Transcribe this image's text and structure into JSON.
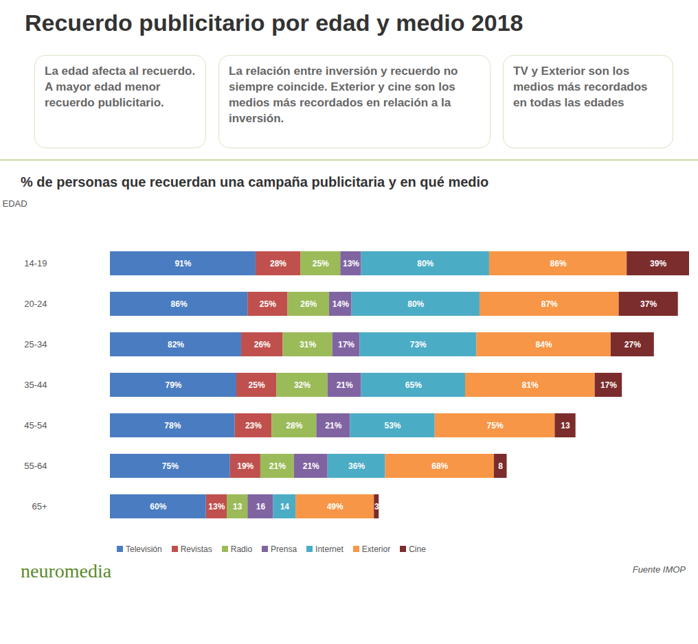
{
  "chart_data": {
    "type": "bar",
    "title": "Recuerdo publicitario por edad y medio 2018",
    "annotations": [
      "La edad afecta al recuerdo. A mayor edad menor recuerdo publicitario.",
      "La relación entre inversión y recuerdo no siempre coincide. Exterior y cine son los medios más recordados en relación a la inversión.",
      "TV y Exterior son los medios más recordados en todas las edades"
    ],
    "subtitle": "% de personas que recuerdan una campaña publicitaria y en qué medio",
    "y_label": "EDAD",
    "categories": [
      "14-19",
      "20-24",
      "25-34",
      "35-44",
      "45-54",
      "55-64",
      "65+"
    ],
    "orientation": "horizontal",
    "stacked": true,
    "data_labels": true,
    "grid": false,
    "tick_labels": "y",
    "legend": "bottom",
    "xlim": [
      0,
      362
    ],
    "series": [
      {
        "name": "Televisión",
        "color": "#4a7cc1",
        "values": [
          91,
          86,
          82,
          79,
          78,
          75,
          60
        ],
        "value_labels": [
          "91%",
          "86%",
          "82%",
          "79%",
          "78%",
          "75%",
          "60%"
        ]
      },
      {
        "name": "Revistas",
        "color": "#c0504d",
        "values": [
          28,
          25,
          26,
          25,
          23,
          19,
          13
        ],
        "value_labels": [
          "28%",
          "25%",
          "26%",
          "25%",
          "23%",
          "19%",
          "13%"
        ]
      },
      {
        "name": "Radio",
        "color": "#9bbb59",
        "values": [
          25,
          26,
          31,
          32,
          28,
          21,
          13
        ],
        "value_labels": [
          "25%",
          "26%",
          "31%",
          "32%",
          "28%",
          "21%",
          "13"
        ]
      },
      {
        "name": "Prensa",
        "color": "#8064a2",
        "values": [
          13,
          14,
          17,
          21,
          21,
          21,
          16
        ],
        "value_labels": [
          "13%",
          "14%",
          "17%",
          "21%",
          "21%",
          "21%",
          "16"
        ]
      },
      {
        "name": "Internet",
        "color": "#4bacc6",
        "values": [
          80,
          80,
          73,
          65,
          53,
          36,
          14
        ],
        "value_labels": [
          "80%",
          "80%",
          "73%",
          "65%",
          "53%",
          "36%",
          "14"
        ]
      },
      {
        "name": "Exterior",
        "color": "#f79646",
        "values": [
          86,
          87,
          84,
          81,
          75,
          68,
          49
        ],
        "value_labels": [
          "86%",
          "87%",
          "84%",
          "81%",
          "75%",
          "68%",
          "49%"
        ]
      },
      {
        "name": "Cine",
        "color": "#7b2c2c",
        "values": [
          39,
          37,
          27,
          17,
          13,
          8,
          3
        ],
        "value_labels": [
          "39%",
          "37%",
          "27%",
          "17%",
          "13",
          "8",
          "3"
        ]
      }
    ],
    "source": "Fuente IMOP",
    "logo": "neuromedia"
  }
}
